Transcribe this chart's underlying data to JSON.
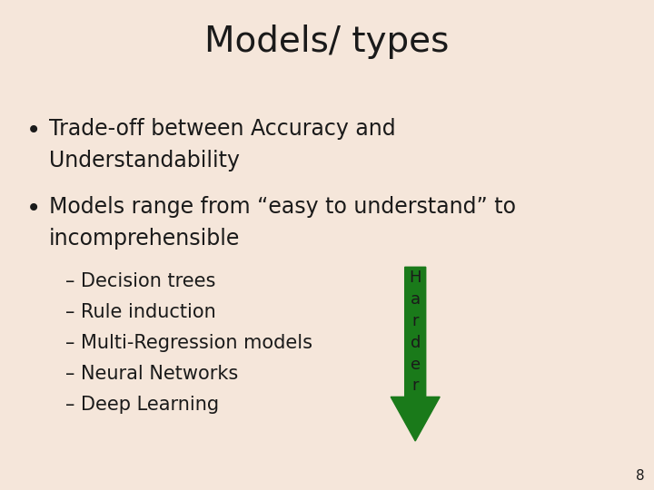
{
  "title": "Models/ types",
  "background_color": "#f5e6da",
  "title_fontsize": 28,
  "title_color": "#1a1a1a",
  "bullet1_line1": "Trade-off between Accuracy and",
  "bullet1_line2": "Understandability",
  "bullet2_line1": "Models range from “easy to understand” to",
  "bullet2_line2": "incomprehensible",
  "sub_items": [
    "– Decision trees",
    "– Rule induction",
    "– Multi-Regression models",
    "– Neural Networks",
    "– Deep Learning"
  ],
  "arrow_color": "#1a7a1a",
  "arrow_chars": [
    "H",
    "a",
    "r",
    "d",
    "e",
    "r"
  ],
  "page_number": "8",
  "text_color": "#1a1a1a",
  "bullet_fontsize": 17,
  "sub_fontsize": 15,
  "page_fontsize": 11
}
